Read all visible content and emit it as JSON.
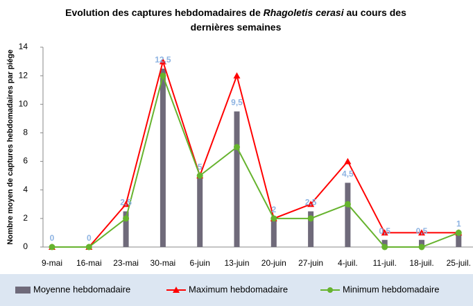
{
  "chart_data": {
    "type": "bar-line",
    "title": [
      "Evolution des captures hebdomadaires de ",
      "Rhagoletis cerasi",
      " au cours des dernières semaines"
    ],
    "ylabel": "Nombre moyen de captures hebdomadaires par piége",
    "categories": [
      "9-mai",
      "16-mai",
      "23-mai",
      "30-mai",
      "6-juin",
      "13-juin",
      "20-juin",
      "27-juin",
      "4-juil.",
      "11-juil.",
      "18-juil.",
      "25-juil."
    ],
    "series": [
      {
        "name": "Moyenne hebdomadaire",
        "kind": "bar",
        "color": "#6f6a7a",
        "values": [
          0,
          0,
          2.5,
          12.5,
          5,
          9.5,
          2,
          2.5,
          4.5,
          0.5,
          0.5,
          1
        ],
        "value_labels": [
          "0",
          "0",
          "2,5",
          "12,5",
          "5",
          "9,5",
          "2",
          "2,5",
          "4,5",
          "0,5",
          "0,5",
          "1"
        ]
      },
      {
        "name": "Maximum hebdomadaire",
        "kind": "line",
        "marker": "triangle",
        "color": "#ff0000",
        "values": [
          0,
          0,
          3,
          13,
          5,
          12,
          2,
          3,
          6,
          1,
          1,
          1
        ]
      },
      {
        "name": "Minimum hebdomadaire",
        "kind": "line",
        "marker": "circle",
        "color": "#66b32e",
        "values": [
          0,
          0,
          2,
          12,
          5,
          7,
          2,
          2,
          3,
          0,
          0,
          1
        ]
      }
    ],
    "ylim": [
      0,
      14
    ],
    "yticks": [
      0,
      2,
      4,
      6,
      8,
      10,
      12,
      14
    ],
    "grid": false,
    "legend": "bottom"
  }
}
